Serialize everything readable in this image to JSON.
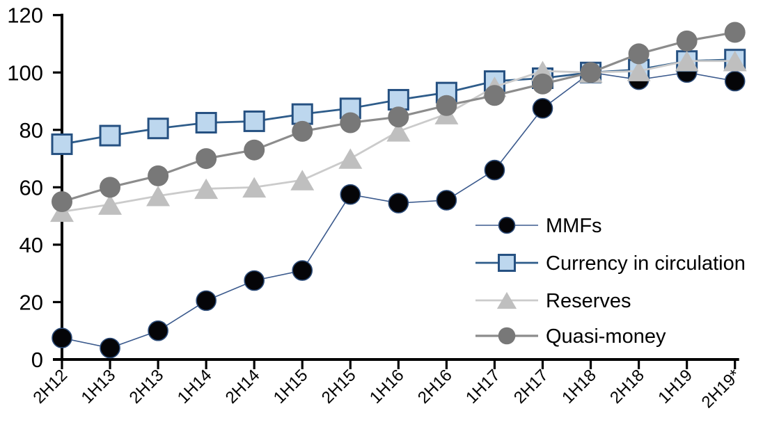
{
  "chart_data": {
    "type": "line",
    "title": "",
    "xlabel": "",
    "ylabel": "",
    "categories": [
      "2H12",
      "1H13",
      "2H13",
      "1H14",
      "2H14",
      "1H15",
      "2H15",
      "1H16",
      "2H16",
      "1H17",
      "2H17",
      "1H18",
      "2H18",
      "1H19",
      "2H19*"
    ],
    "series": [
      {
        "name": "MMFs",
        "marker": "circle",
        "marker_color": "#050508",
        "marker_edge": "#2b4a77",
        "line_color": "#3b5a8d",
        "line_width": 1.6,
        "marker_size": 28,
        "values": [
          7.5,
          4,
          10,
          20.5,
          27.5,
          31,
          57.5,
          54.5,
          55.5,
          66,
          87.5,
          100,
          97.5,
          100,
          97
        ]
      },
      {
        "name": "Currency in circulation",
        "marker": "square",
        "marker_color": "#bdd7ee",
        "marker_edge": "#255081",
        "line_color": "#2e5c8a",
        "line_width": 2.8,
        "marker_size": 28,
        "values": [
          75,
          78,
          80.5,
          82.5,
          83,
          85.5,
          87.5,
          90.5,
          93,
          97,
          98,
          100,
          101,
          104,
          104.5
        ]
      },
      {
        "name": "Reserves",
        "marker": "triangle",
        "marker_color": "#bfbfbf",
        "marker_edge": "none",
        "line_color": "#cbcbcb",
        "line_width": 2.8,
        "marker_size": 32,
        "values": [
          51.5,
          54,
          57,
          59.5,
          60,
          62.5,
          70,
          79.5,
          85.5,
          95,
          100.5,
          100,
          100.5,
          104,
          104
        ]
      },
      {
        "name": "Quasi-money",
        "marker": "circle",
        "marker_color": "#787878",
        "marker_edge": "none",
        "line_color": "#8c8c8c",
        "line_width": 3.2,
        "marker_size": 30,
        "values": [
          55,
          60,
          64,
          70,
          73,
          79.5,
          82.5,
          84.5,
          88.5,
          92,
          96,
          100,
          106.5,
          111,
          114
        ]
      }
    ],
    "ylim": [
      0,
      120
    ],
    "yticks": [
      0,
      20,
      40,
      60,
      80,
      100,
      120
    ],
    "grid": false,
    "axis_color": "#000000",
    "legend_position": "inside-center-right",
    "legend_labels": [
      "MMFs",
      "Currency in circulation",
      "Reserves",
      "Quasi-money"
    ]
  }
}
